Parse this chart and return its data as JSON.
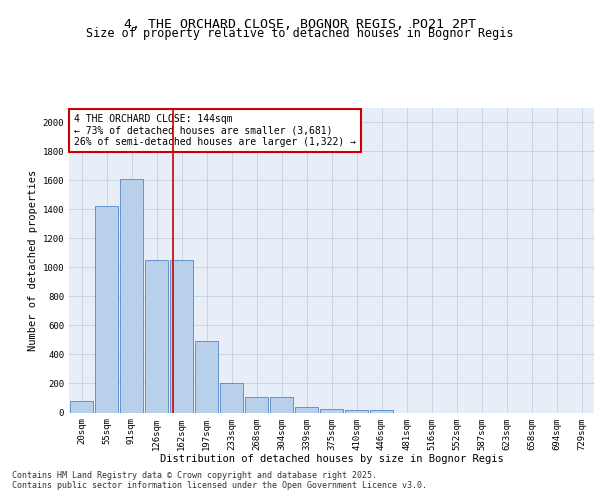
{
  "title1": "4, THE ORCHARD CLOSE, BOGNOR REGIS, PO21 2PT",
  "title2": "Size of property relative to detached houses in Bognor Regis",
  "xlabel": "Distribution of detached houses by size in Bognor Regis",
  "ylabel": "Number of detached properties",
  "categories": [
    "20sqm",
    "55sqm",
    "91sqm",
    "126sqm",
    "162sqm",
    "197sqm",
    "233sqm",
    "268sqm",
    "304sqm",
    "339sqm",
    "375sqm",
    "410sqm",
    "446sqm",
    "481sqm",
    "516sqm",
    "552sqm",
    "587sqm",
    "623sqm",
    "658sqm",
    "694sqm",
    "729sqm"
  ],
  "bar_values": [
    80,
    1420,
    1610,
    1050,
    1050,
    490,
    200,
    105,
    105,
    35,
    25,
    20,
    20,
    0,
    0,
    0,
    0,
    0,
    0,
    0,
    0
  ],
  "bar_color": "#b8d0ea",
  "bar_edge_color": "#5585c5",
  "grid_color": "#c8d4e8",
  "background_color": "#e8eef8",
  "vline_x": 3.65,
  "vline_color": "#cc0000",
  "annotation_line1": "4 THE ORCHARD CLOSE: 144sqm",
  "annotation_line2": "← 73% of detached houses are smaller (3,681)",
  "annotation_line3": "26% of semi-detached houses are larger (1,322) →",
  "annotation_box_color": "#cc0000",
  "ylim": [
    0,
    2100
  ],
  "yticks": [
    0,
    200,
    400,
    600,
    800,
    1000,
    1200,
    1400,
    1600,
    1800,
    2000
  ],
  "footer1": "Contains HM Land Registry data © Crown copyright and database right 2025.",
  "footer2": "Contains public sector information licensed under the Open Government Licence v3.0.",
  "title_fontsize": 9.5,
  "subtitle_fontsize": 8.5,
  "axis_label_fontsize": 7.5,
  "tick_fontsize": 6.5,
  "annotation_fontsize": 7,
  "footer_fontsize": 6
}
